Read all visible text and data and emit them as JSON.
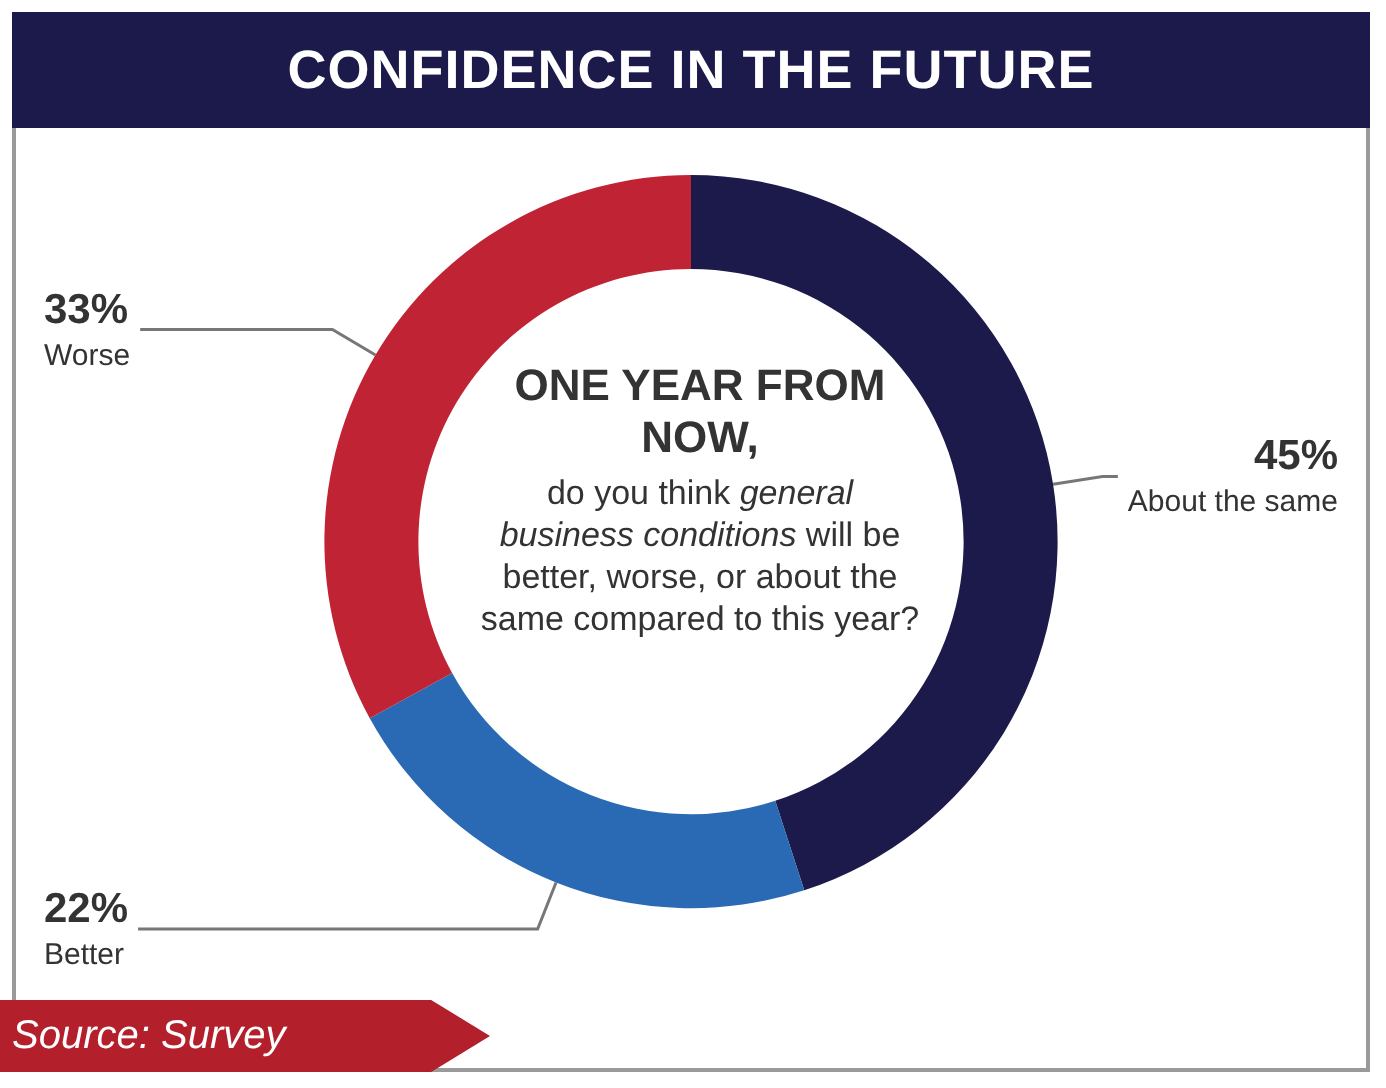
{
  "chart_data": {
    "type": "donut",
    "title": "CONFIDENCE IN THE FUTURE",
    "categories": [
      "About the same",
      "Better",
      "Worse"
    ],
    "values": [
      45,
      22,
      33
    ],
    "value_labels": [
      "45%",
      "22%",
      "33%"
    ],
    "colors": [
      "#1c1a4b",
      "#2a6ab5",
      "#c02334"
    ],
    "legend": false,
    "annotations": [
      "ONE YEAR FROM NOW,",
      "do you think",
      "general business conditions",
      "will be better, worse, or about the same compared to this year?",
      "Source: Survey"
    ]
  }
}
